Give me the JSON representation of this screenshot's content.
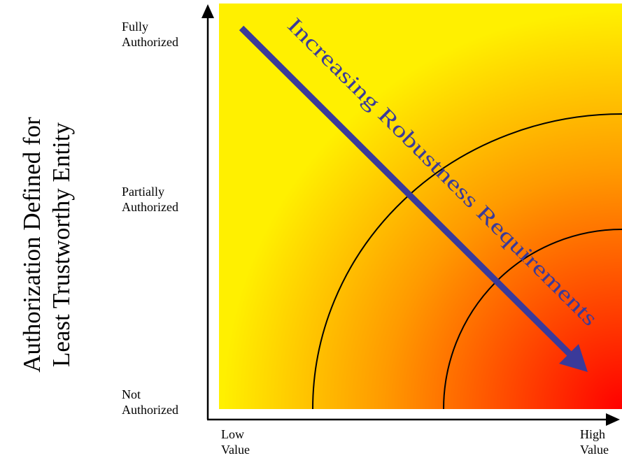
{
  "y_axis": {
    "title_line1": "Authorization Defined for",
    "title_line2": "Least Trustworthy Entity",
    "ticks": [
      {
        "line1": "Fully",
        "line2": "Authorized"
      },
      {
        "line1": "Partially",
        "line2": "Authorized"
      },
      {
        "line1": "Not",
        "line2": "Authorized"
      }
    ]
  },
  "x_axis": {
    "ticks": [
      {
        "line1": "Low",
        "line2": "Value"
      },
      {
        "line1": "High",
        "line2": "Value"
      }
    ]
  },
  "arrow_label": "Increasing Robustness Requirements",
  "colors": {
    "gradient_low": "#fff000",
    "gradient_mid": "#ff9a00",
    "gradient_high": "#ff0000",
    "arrow": "#3a3a9a",
    "arrow_text": "#3a3a9a",
    "axes": "#000000"
  }
}
